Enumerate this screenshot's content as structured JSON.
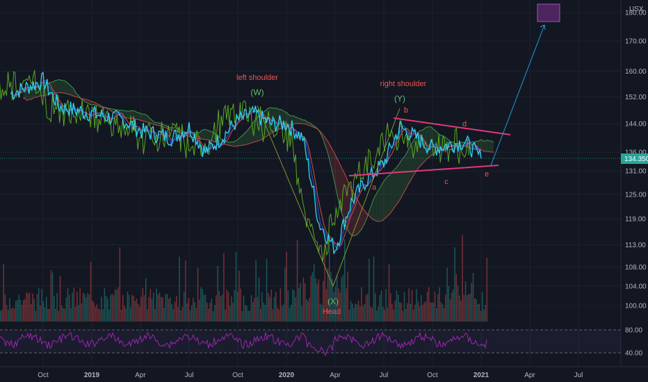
{
  "colors": {
    "background": "#131722",
    "grid": "#1e2230",
    "axis_text": "#b2b5be",
    "price": "#2ecde6",
    "ichimoku_green": "#4caf50",
    "ichimoku_red": "#ef5350",
    "lagging": "#5aa822",
    "pattern": "#7c9a2e",
    "triangle": "#e0397a",
    "arrow": "#2a9ad6",
    "target_box": "#7b2f8f",
    "rsi": "#9c27b0",
    "label_red": "#ef5350",
    "label_green": "#66bb6a",
    "price_tag": "#26a69a"
  },
  "chart_data": {
    "type": "line",
    "title": "",
    "currency": "USX",
    "xlabel": "",
    "ylabel": "",
    "y_ticks": [
      "100.00",
      "104.00",
      "108.00",
      "113.00",
      "119.00",
      "125.00",
      "131.00",
      "136.00",
      "144.00",
      "152.00",
      "160.00",
      "170.00",
      "180.00"
    ],
    "x_ticks": [
      "Oct",
      "2019",
      "Apr",
      "Jul",
      "Oct",
      "2020",
      "Apr",
      "Jul",
      "Oct",
      "2021",
      "Apr",
      "Jul"
    ],
    "last_price": "134.350",
    "rsi_levels": [
      "80.00",
      "40.00"
    ],
    "price_points": [
      {
        "x": "2018-08",
        "y": 153
      },
      {
        "x": "2018-10",
        "y": 157
      },
      {
        "x": "2018-11",
        "y": 149
      },
      {
        "x": "2019-01",
        "y": 147
      },
      {
        "x": "2019-03",
        "y": 145
      },
      {
        "x": "2019-04",
        "y": 142
      },
      {
        "x": "2019-06",
        "y": 140
      },
      {
        "x": "2019-07",
        "y": 143
      },
      {
        "x": "2019-08",
        "y": 136
      },
      {
        "x": "2019-09",
        "y": 140
      },
      {
        "x": "2019-10",
        "y": 145
      },
      {
        "x": "2019-11",
        "y": 147
      },
      {
        "x": "2019-12",
        "y": 144
      },
      {
        "x": "2020-01",
        "y": 144
      },
      {
        "x": "2020-02",
        "y": 140
      },
      {
        "x": "2020-03",
        "y": 118
      },
      {
        "x": "2020-04",
        "y": 112
      },
      {
        "x": "2020-05",
        "y": 123
      },
      {
        "x": "2020-06",
        "y": 129
      },
      {
        "x": "2020-07",
        "y": 133
      },
      {
        "x": "2020-08",
        "y": 143
      },
      {
        "x": "2020-09",
        "y": 140
      },
      {
        "x": "2020-10",
        "y": 137
      },
      {
        "x": "2020-11",
        "y": 138
      },
      {
        "x": "2020-12",
        "y": 139
      },
      {
        "x": "2021-01",
        "y": 134.35
      }
    ],
    "annotations": [
      {
        "text": "left shoulder",
        "color": "#ef5350"
      },
      {
        "text": "(W)",
        "color": "#66bb6a"
      },
      {
        "text": "right shoulder",
        "color": "#ef5350"
      },
      {
        "text": "(Y)",
        "color": "#66bb6a"
      },
      {
        "text": "(X)",
        "color": "#66bb6a"
      },
      {
        "text": "Head",
        "color": "#ef5350"
      },
      {
        "text": "a",
        "color": "#ef5350"
      },
      {
        "text": "b",
        "color": "#ef5350"
      },
      {
        "text": "c",
        "color": "#ef5350"
      },
      {
        "text": "d",
        "color": "#ef5350"
      },
      {
        "text": "e",
        "color": "#ef5350"
      }
    ],
    "legend": "none",
    "grid": true
  }
}
